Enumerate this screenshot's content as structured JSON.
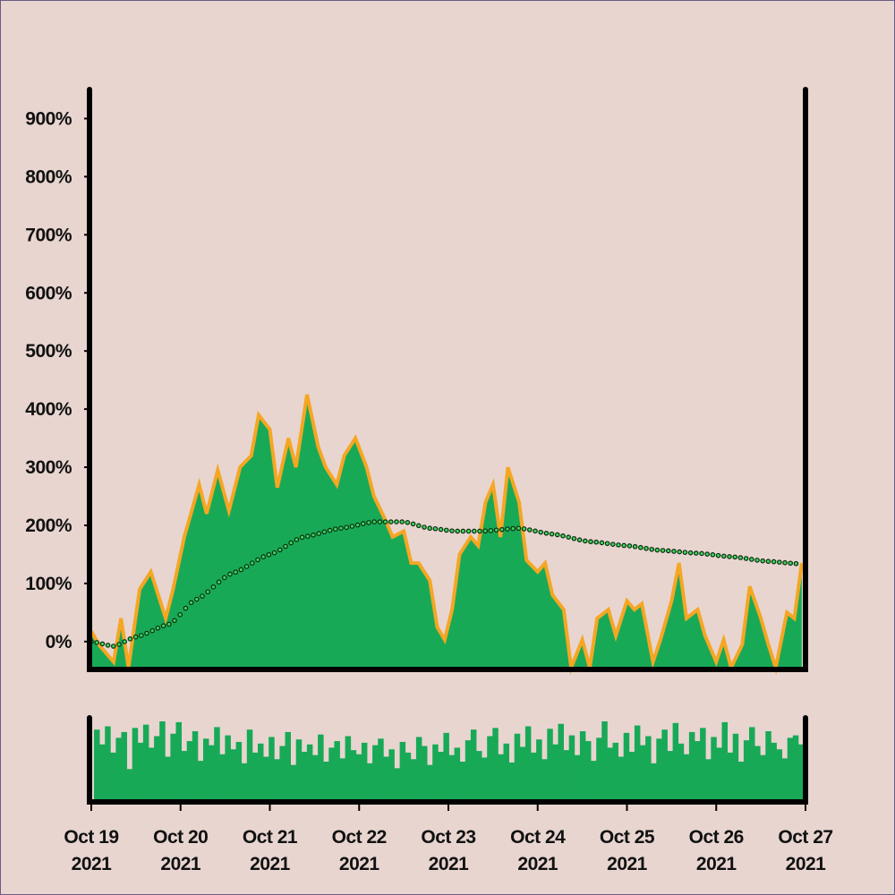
{
  "colors": {
    "background": "#e8d5cf",
    "area": "#18a957",
    "line": "#f5a623",
    "ma_dot": "#3ed65a",
    "axis": "#000000",
    "volume": "#18a957"
  },
  "chart_data": [
    {
      "type": "area",
      "ylim": [
        -48,
        950
      ],
      "xlim": [
        "2021-10-19T00:00",
        "2021-10-27T00:00"
      ],
      "yticks": [
        "0%",
        "100%",
        "200%",
        "300%",
        "400%",
        "500%",
        "600%",
        "700%",
        "800%",
        "900%"
      ],
      "ytick_values": [
        0,
        100,
        200,
        300,
        400,
        500,
        600,
        700,
        800,
        900
      ],
      "grid": false,
      "series": [
        {
          "type": "area",
          "x": [
            "2021-10-19T00:00",
            "2021-10-19T02:00",
            "2021-10-19T06:00",
            "2021-10-19T08:00",
            "2021-10-19T10:00",
            "2021-10-19T13:00",
            "2021-10-19T16:00",
            "2021-10-19T20:00",
            "2021-10-19T22:00",
            "2021-10-20T01:00",
            "2021-10-20T03:00",
            "2021-10-20T05:00",
            "2021-10-20T07:00",
            "2021-10-20T10:00",
            "2021-10-20T13:00",
            "2021-10-20T16:00",
            "2021-10-20T19:00",
            "2021-10-20T21:00",
            "2021-10-21T00:00",
            "2021-10-21T02:00",
            "2021-10-21T05:00",
            "2021-10-21T07:00",
            "2021-10-21T10:00",
            "2021-10-21T13:00",
            "2021-10-21T15:00",
            "2021-10-21T18:00",
            "2021-10-21T20:00",
            "2021-10-21T23:00",
            "2021-10-22T02:00",
            "2021-10-22T04:00",
            "2021-10-22T07:00",
            "2021-10-22T09:00",
            "2021-10-22T12:00",
            "2021-10-22T14:00",
            "2021-10-22T16:00",
            "2021-10-22T19:00",
            "2021-10-22T21:00",
            "2021-10-22T23:00",
            "2021-10-23T01:00",
            "2021-10-23T03:00",
            "2021-10-23T06:00",
            "2021-10-23T08:00",
            "2021-10-23T10:00",
            "2021-10-23T12:00",
            "2021-10-23T14:00",
            "2021-10-23T16:00",
            "2021-10-23T19:00",
            "2021-10-23T21:00",
            "2021-10-24T00:00",
            "2021-10-24T02:00",
            "2021-10-24T04:00",
            "2021-10-24T07:00",
            "2021-10-24T09:00",
            "2021-10-24T12:00",
            "2021-10-24T14:00",
            "2021-10-24T16:00",
            "2021-10-24T19:00",
            "2021-10-24T21:00",
            "2021-10-25T00:00",
            "2021-10-25T02:00",
            "2021-10-25T04:00",
            "2021-10-25T07:00",
            "2021-10-25T09:00",
            "2021-10-25T12:00",
            "2021-10-25T14:00",
            "2021-10-25T16:00",
            "2021-10-25T19:00",
            "2021-10-25T21:00",
            "2021-10-26T00:00",
            "2021-10-26T02:00",
            "2021-10-26T04:00",
            "2021-10-26T07:00",
            "2021-10-26T09:00",
            "2021-10-26T12:00",
            "2021-10-26T14:00",
            "2021-10-26T16:00",
            "2021-10-26T19:00",
            "2021-10-26T21:00",
            "2021-10-26T23:00"
          ],
          "values": [
            18,
            -5,
            -35,
            40,
            -45,
            90,
            120,
            40,
            90,
            180,
            225,
            270,
            220,
            295,
            225,
            300,
            320,
            390,
            365,
            265,
            350,
            300,
            425,
            335,
            300,
            270,
            320,
            350,
            300,
            250,
            210,
            180,
            190,
            135,
            135,
            105,
            25,
            3,
            55,
            150,
            180,
            165,
            240,
            270,
            180,
            300,
            240,
            140,
            120,
            135,
            80,
            55,
            -45,
            3,
            -45,
            40,
            55,
            10,
            70,
            55,
            65,
            -35,
            3,
            70,
            135,
            40,
            55,
            10,
            -35,
            3,
            -45,
            -5,
            95,
            40,
            -5,
            -45,
            50,
            40,
            135
          ]
        },
        {
          "type": "line-dotted",
          "x": [
            "2021-10-19T00:00",
            "2021-10-19T06:00",
            "2021-10-19T12:00",
            "2021-10-19T21:00",
            "2021-10-20T04:00",
            "2021-10-20T14:00",
            "2021-10-21T00:00",
            "2021-10-21T09:00",
            "2021-10-21T19:00",
            "2021-10-22T04:00",
            "2021-10-22T12:00",
            "2021-10-22T19:00",
            "2021-10-23T02:00",
            "2021-10-23T09:00",
            "2021-10-23T19:00",
            "2021-10-24T04:00",
            "2021-10-24T14:00",
            "2021-10-25T00:00",
            "2021-10-25T09:00",
            "2021-10-25T19:00",
            "2021-10-26T04:00",
            "2021-10-26T14:00",
            "2021-10-26T22:00"
          ],
          "values": [
            0,
            -8,
            8,
            30,
            72,
            118,
            150,
            180,
            195,
            206,
            206,
            195,
            190,
            190,
            195,
            185,
            172,
            165,
            157,
            152,
            146,
            138,
            134
          ]
        }
      ]
    },
    {
      "type": "bar",
      "xticks": [
        {
          "line1": "Oct 19",
          "line2": "2021",
          "date": "2021-10-19T00:00"
        },
        {
          "line1": "Oct 20",
          "line2": "2021",
          "date": "2021-10-20T00:00"
        },
        {
          "line1": "Oct 21",
          "line2": "2021",
          "date": "2021-10-21T00:00"
        },
        {
          "line1": "Oct 22",
          "line2": "2021",
          "date": "2021-10-22T00:00"
        },
        {
          "line1": "Oct 23",
          "line2": "2021",
          "date": "2021-10-23T00:00"
        },
        {
          "line1": "Oct 24",
          "line2": "2021",
          "date": "2021-10-24T00:00"
        },
        {
          "line1": "Oct 25",
          "line2": "2021",
          "date": "2021-10-25T00:00"
        },
        {
          "line1": "Oct 26",
          "line2": "2021",
          "date": "2021-10-26T00:00"
        },
        {
          "line1": "Oct 27",
          "line2": "2021",
          "date": "2021-10-27T00:00"
        }
      ],
      "values": [
        88,
        70,
        92,
        60,
        78,
        85,
        40,
        90,
        72,
        94,
        66,
        80,
        98,
        55,
        83,
        97,
        62,
        74,
        86,
        50,
        77,
        69,
        91,
        58,
        81,
        64,
        73,
        47,
        88,
        60,
        71,
        55,
        79,
        52,
        68,
        85,
        45,
        76,
        61,
        70,
        57,
        82,
        49,
        66,
        74,
        53,
        80,
        63,
        58,
        72,
        47,
        69,
        77,
        55,
        64,
        41,
        73,
        60,
        52,
        79,
        68,
        45,
        70,
        61,
        84,
        57,
        66,
        49,
        75,
        88,
        62,
        54,
        80,
        90,
        58,
        71,
        48,
        83,
        67,
        92,
        60,
        76,
        52,
        89,
        70,
        95,
        63,
        81,
        57,
        86,
        74,
        50,
        78,
        98,
        66,
        72,
        55,
        84,
        61,
        93,
        69,
        80,
        47,
        77,
        88,
        62,
        96,
        71,
        58,
        85,
        74,
        90,
        52,
        79,
        66,
        97,
        60,
        83,
        49,
        75,
        91,
        68,
        57,
        86,
        72,
        64,
        53,
        78,
        81,
        70
      ]
    }
  ]
}
